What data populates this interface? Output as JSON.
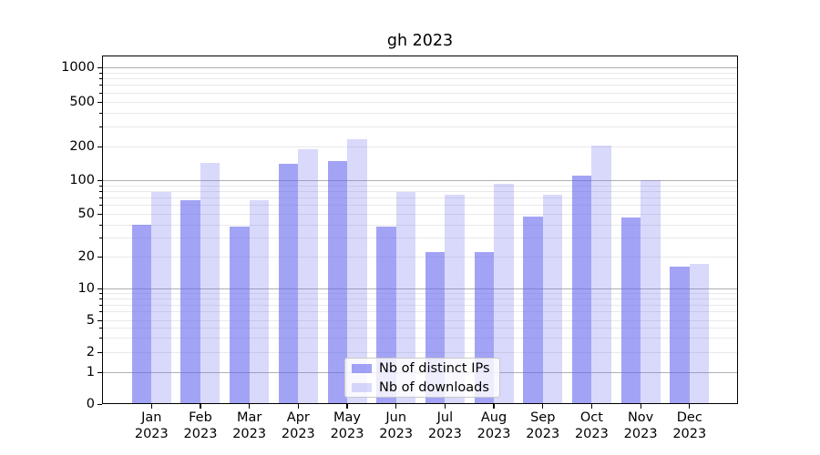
{
  "title": "gh 2023",
  "chart_data": {
    "type": "bar",
    "title": "gh 2023",
    "categories": [
      "Jan",
      "Feb",
      "Mar",
      "Apr",
      "May",
      "Jun",
      "Jul",
      "Aug",
      "Sep",
      "Oct",
      "Nov",
      "Dec"
    ],
    "category_year": "2023",
    "series": [
      {
        "name": "Nb of distinct IPs",
        "values": [
          40,
          67,
          38,
          140,
          148,
          38,
          22,
          22,
          47,
          110,
          46,
          16
        ]
      },
      {
        "name": "Nb of downloads",
        "values": [
          79,
          142,
          67,
          190,
          230,
          79,
          74,
          93,
          75,
          202,
          100,
          17
        ]
      }
    ],
    "yscale": "symlog",
    "yticks": [
      0,
      1,
      2,
      5,
      10,
      20,
      50,
      100,
      200,
      500,
      1000
    ],
    "ylim": [
      0,
      1000
    ],
    "xlabel": "",
    "ylabel": "",
    "grid": true,
    "legend_position": "lower center inside"
  },
  "colors": {
    "bar_base": "#6666f0",
    "distinct_ips_fill": "rgba(102,102,240,0.6)",
    "downloads_fill": "rgba(102,102,240,0.25)",
    "major_grid": "#b0b0b0",
    "minor_grid": "#e9e9e9",
    "axis": "#000000",
    "legend_border": "#c9c9c9",
    "legend_bg": "rgba(255,255,255,0.8)"
  }
}
